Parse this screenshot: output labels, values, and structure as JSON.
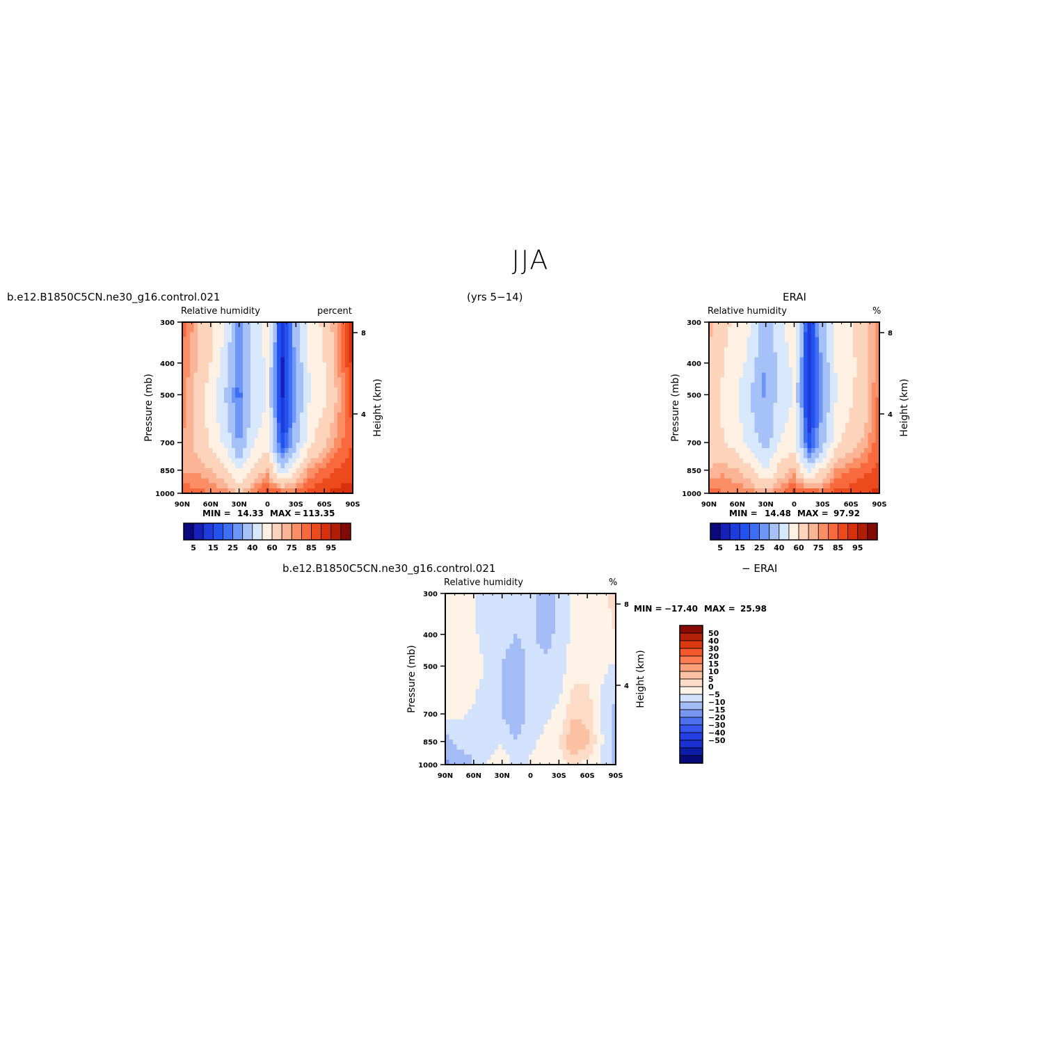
{
  "page": {
    "title": "JJA",
    "top_left_header": "b.e12.B1850C5CN.ne30_g16.control.021",
    "top_center_header": "(yrs 5−14)",
    "top_right_header": "ERAI",
    "bottom_header_left": "b.e12.B1850C5CN.ne30_g16.control.021",
    "bottom_header_right": "− ERAI"
  },
  "colors": {
    "abs_scale": [
      "#0a0a7e",
      "#1620b8",
      "#1e3cdc",
      "#2452f0",
      "#3e6ef4",
      "#6e96f6",
      "#a6c0f8",
      "#d8e8fc",
      "#fff0e4",
      "#fcd4bc",
      "#fcb496",
      "#fc8e66",
      "#f86a3e",
      "#ec4a1c",
      "#d8300c",
      "#b01e06",
      "#800a04"
    ],
    "diff_scale": [
      "#060a7a",
      "#0c1ea8",
      "#1a30d0",
      "#243ee6",
      "#3456ee",
      "#4c70f0",
      "#7896f2",
      "#a4bcf6",
      "#d2e2fc",
      "#fff2e6",
      "#fcdcc6",
      "#fcc0a2",
      "#fca07c",
      "#fc7c52",
      "#f4582c",
      "#dc3810",
      "#b42008",
      "#8a0a02"
    ]
  },
  "chart_data": [
    {
      "type": "heatmap",
      "name": "model",
      "header": "b.e12.B1850C5CN.ne30_g16.control.021",
      "title": "Relative humidity",
      "units": "percent",
      "ylabel": "Pressure (mb)",
      "ylabel_right": "Height (km)",
      "x_ticks": [
        "90N",
        "60N",
        "30N",
        "0",
        "30S",
        "60S",
        "90S"
      ],
      "y_ticks": [
        "300",
        "400",
        "500",
        "700",
        "850",
        "1000"
      ],
      "y_ticks_right": [
        "8",
        "4"
      ],
      "x": [
        -90,
        -75,
        -60,
        -45,
        -30,
        -15,
        0,
        15,
        30,
        45,
        60,
        75,
        90
      ],
      "y": [
        300,
        400,
        500,
        700,
        850,
        1000
      ],
      "values": [
        [
          82,
          72,
          62,
          50,
          25,
          45,
          55,
          10,
          35,
          55,
          62,
          78,
          96
        ],
        [
          80,
          70,
          60,
          45,
          25,
          42,
          52,
          8,
          32,
          52,
          60,
          75,
          92
        ],
        [
          78,
          68,
          55,
          40,
          22,
          42,
          50,
          8,
          30,
          50,
          58,
          72,
          88
        ],
        [
          75,
          68,
          58,
          48,
          28,
          50,
          55,
          15,
          35,
          58,
          68,
          78,
          85
        ],
        [
          72,
          74,
          70,
          62,
          48,
          62,
          72,
          42,
          60,
          76,
          82,
          86,
          88
        ],
        [
          86,
          82,
          80,
          78,
          70,
          80,
          88,
          84,
          82,
          88,
          90,
          92,
          92
        ]
      ],
      "clabels": [
        "5",
        "15",
        "25",
        "40",
        "60",
        "75",
        "85",
        "95"
      ],
      "min_label": "MIN =",
      "min_value": "14.33",
      "max_label": "MAX =",
      "max_value": "113.35"
    },
    {
      "type": "heatmap",
      "name": "erai",
      "header": "ERAI",
      "title": "Relative humidity",
      "units": "%",
      "ylabel": "Pressure (mb)",
      "ylabel_right": "Height (km)",
      "x_ticks": [
        "90N",
        "60N",
        "30N",
        "0",
        "30S",
        "60S",
        "90S"
      ],
      "y_ticks": [
        "300",
        "400",
        "500",
        "700",
        "850",
        "1000"
      ],
      "y_ticks_right": [
        "8",
        "4"
      ],
      "x": [
        -90,
        -75,
        -60,
        -45,
        -30,
        -15,
        0,
        15,
        30,
        45,
        60,
        75,
        90
      ],
      "y": [
        300,
        400,
        500,
        700,
        850,
        1000
      ],
      "values": [
        [
          72,
          62,
          58,
          50,
          30,
          48,
          55,
          12,
          35,
          55,
          60,
          65,
          80
        ],
        [
          70,
          60,
          55,
          45,
          28,
          45,
          52,
          10,
          32,
          52,
          58,
          65,
          80
        ],
        [
          70,
          58,
          50,
          38,
          28,
          45,
          50,
          10,
          30,
          50,
          58,
          66,
          82
        ],
        [
          68,
          60,
          55,
          45,
          35,
          50,
          55,
          15,
          35,
          58,
          66,
          72,
          85
        ],
        [
          70,
          74,
          70,
          62,
          50,
          64,
          72,
          45,
          62,
          76,
          80,
          84,
          86
        ],
        [
          84,
          80,
          80,
          78,
          72,
          80,
          88,
          86,
          82,
          88,
          88,
          90,
          92
        ]
      ],
      "clabels": [
        "5",
        "15",
        "25",
        "40",
        "60",
        "75",
        "85",
        "95"
      ],
      "min_label": "MIN =",
      "min_value": "14.48",
      "max_label": "MAX =",
      "max_value": "97.92"
    },
    {
      "type": "heatmap",
      "name": "difference",
      "header_left": "b.e12.B1850C5CN.ne30_g16.control.021",
      "header_right": "− ERAI",
      "title": "Relative humidity",
      "units": "%",
      "ylabel": "Pressure (mb)",
      "ylabel_right": "Height (km)",
      "x_ticks": [
        "90N",
        "60N",
        "30N",
        "0",
        "30S",
        "60S",
        "90S"
      ],
      "y_ticks": [
        "300",
        "400",
        "500",
        "700",
        "850",
        "1000"
      ],
      "y_ticks_right": [
        "8",
        "4"
      ],
      "x": [
        -90,
        -75,
        -60,
        -45,
        -30,
        -15,
        0,
        15,
        30,
        45,
        60,
        75,
        90
      ],
      "y": [
        300,
        400,
        500,
        700,
        850,
        1000
      ],
      "values": [
        [
          8,
          6,
          6,
          2,
          2,
          2,
          4,
          -4,
          2,
          6,
          8,
          8,
          12
        ],
        [
          10,
          8,
          6,
          2,
          2,
          0,
          2,
          -3,
          2,
          6,
          10,
          8,
          10
        ],
        [
          10,
          10,
          8,
          4,
          0,
          -4,
          2,
          2,
          2,
          8,
          8,
          6,
          4
        ],
        [
          6,
          6,
          4,
          0,
          0,
          -4,
          2,
          4,
          6,
          14,
          14,
          4,
          -2
        ],
        [
          -2,
          2,
          2,
          2,
          4,
          0,
          4,
          6,
          10,
          20,
          16,
          6,
          -4
        ],
        [
          -6,
          -4,
          0,
          6,
          10,
          2,
          6,
          6,
          8,
          10,
          8,
          4,
          -2
        ]
      ],
      "clabels": [
        "50",
        "40",
        "30",
        "20",
        "15",
        "10",
        "5",
        "0",
        "−5",
        "−10",
        "−15",
        "−20",
        "−30",
        "−40",
        "−50"
      ],
      "min_label": "MIN =",
      "min_value": "−17.40",
      "max_label": "MAX =",
      "max_value": "25.98"
    }
  ]
}
